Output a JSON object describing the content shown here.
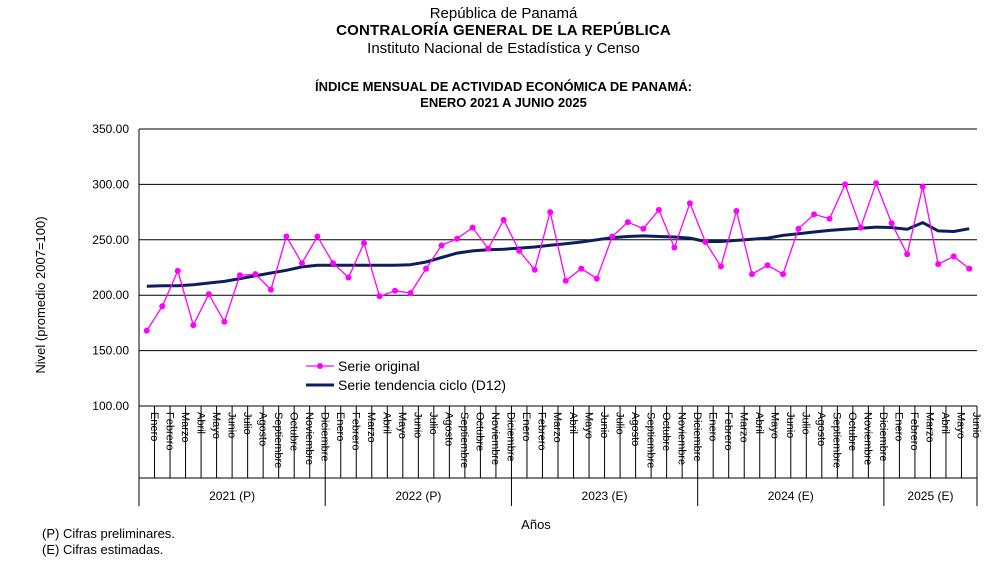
{
  "header": {
    "line1": "República de Panamá",
    "line2": "CONTRALORÍA  GENERAL DE LA REPÚBLICA",
    "line3": "Instituto Nacional de Estadística y Censo"
  },
  "notes": [
    "(P) Cifras preliminares.",
    "(E) Cifras estimadas."
  ],
  "chart_data": {
    "type": "line",
    "title": "ÍNDICE MENSUAL DE ACTIVIDAD ECONÓMICA DE PANAMÁ:",
    "subtitle": "ENERO 2021 A JUNIO 2025",
    "ylabel": "Nivel (promedio 2007=100)",
    "xlabel": "Años",
    "ylim": [
      100,
      350
    ],
    "yticks": [
      "100.00",
      "150.00",
      "200.00",
      "250.00",
      "300.00",
      "350.00"
    ],
    "grid": true,
    "legend_position": "bottom-left inside",
    "months": [
      "Enero",
      "Febrero",
      "Marzo",
      "Abril",
      "Mayo",
      "Junio",
      "Julio",
      "Agosto",
      "Septiembre",
      "Octubre",
      "Noviembre",
      "Diciembre",
      "Enero",
      "Febrero",
      "Marzo",
      "Abril",
      "Mayo",
      "Junio",
      "Julio",
      "Agosto",
      "Septiembre",
      "Octubre",
      "Noviembre",
      "Diciembre",
      "Enero",
      "Febrero",
      "Marzo",
      "Abril",
      "Mayo",
      "Junio",
      "Julio",
      "Agosto",
      "Septiembre",
      "Octubre",
      "Noviembre",
      "Diciembre",
      "Enero",
      "Febrero",
      "Marzo",
      "Abril",
      "Mayo",
      "Junio",
      "Julio",
      "Agosto",
      "Septiembre",
      "Octubre",
      "Noviembre",
      "Diciembre",
      "Enero",
      "Febrero",
      "Marzo",
      "Abril",
      "Mayo",
      "Junio"
    ],
    "years": [
      {
        "label": "2021 (P)",
        "months": 12
      },
      {
        "label": "2022 (P)",
        "months": 12
      },
      {
        "label": "2023 (E)",
        "months": 12
      },
      {
        "label": "2024 (E)",
        "months": 12
      },
      {
        "label": "2025 (E)",
        "months": 6
      }
    ],
    "series": [
      {
        "name": "Serie original",
        "color": "#ff00ff",
        "marker": "circle",
        "values": [
          168,
          190,
          222,
          173,
          201,
          176,
          218,
          219,
          205,
          253,
          229,
          253,
          229,
          216,
          247,
          199,
          204,
          202,
          224,
          245,
          251,
          261,
          242,
          268,
          240,
          223,
          275,
          213,
          224,
          215,
          253,
          266,
          260,
          277,
          243,
          283,
          248,
          226,
          276,
          219,
          227,
          219,
          260,
          273,
          269,
          300,
          261,
          301,
          265,
          237,
          298,
          228,
          235,
          224
        ]
      },
      {
        "name": "Serie tendencia ciclo (D12)",
        "color": "#0c1f5c",
        "marker": "none",
        "values": [
          208,
          208.5,
          208.5,
          209.5,
          211,
          212.5,
          215,
          217.5,
          220,
          222.5,
          225.5,
          227,
          227,
          227,
          227,
          227,
          227,
          227.5,
          230,
          234,
          238,
          240,
          241,
          241.5,
          242.5,
          243.5,
          245,
          246.5,
          248,
          250,
          252,
          253,
          253.5,
          253,
          252.5,
          251.5,
          248.5,
          248.5,
          249.5,
          250.5,
          251.5,
          254,
          255.5,
          257,
          258.5,
          259.5,
          260.5,
          261.5,
          261,
          259.5,
          265.5,
          258,
          257.5,
          260
        ]
      }
    ]
  }
}
